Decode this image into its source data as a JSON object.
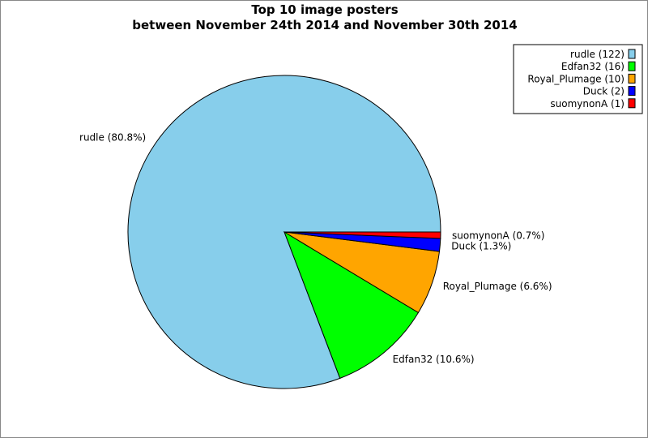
{
  "chart_data": {
    "type": "pie",
    "title": "Top 10 image posters",
    "subtitle": "between November 24th 2014 and November 30th 2014",
    "legend_position": "top-right",
    "slices": [
      {
        "name": "rudle",
        "value": 122,
        "percent_label": "80.8%",
        "legend_label": "rudle (122)",
        "slice_label": "rudle (80.8%)",
        "color": "#87ceeb"
      },
      {
        "name": "Edfan32",
        "value": 16,
        "percent_label": "10.6%",
        "legend_label": "Edfan32 (16)",
        "slice_label": "Edfan32 (10.6%)",
        "color": "#00ff00"
      },
      {
        "name": "Royal_Plumage",
        "value": 10,
        "percent_label": "6.6%",
        "legend_label": "Royal_Plumage (10)",
        "slice_label": "Royal_Plumage (6.6%)",
        "color": "#ffa500"
      },
      {
        "name": "Duck",
        "value": 2,
        "percent_label": "1.3%",
        "legend_label": "Duck (2)",
        "slice_label": "Duck (1.3%)",
        "color": "#0000ff"
      },
      {
        "name": "suomynonA",
        "value": 1,
        "percent_label": "0.7%",
        "legend_label": "suomynonA (1)",
        "slice_label": "suomynonA (0.7%)",
        "color": "#ff0000"
      }
    ]
  }
}
